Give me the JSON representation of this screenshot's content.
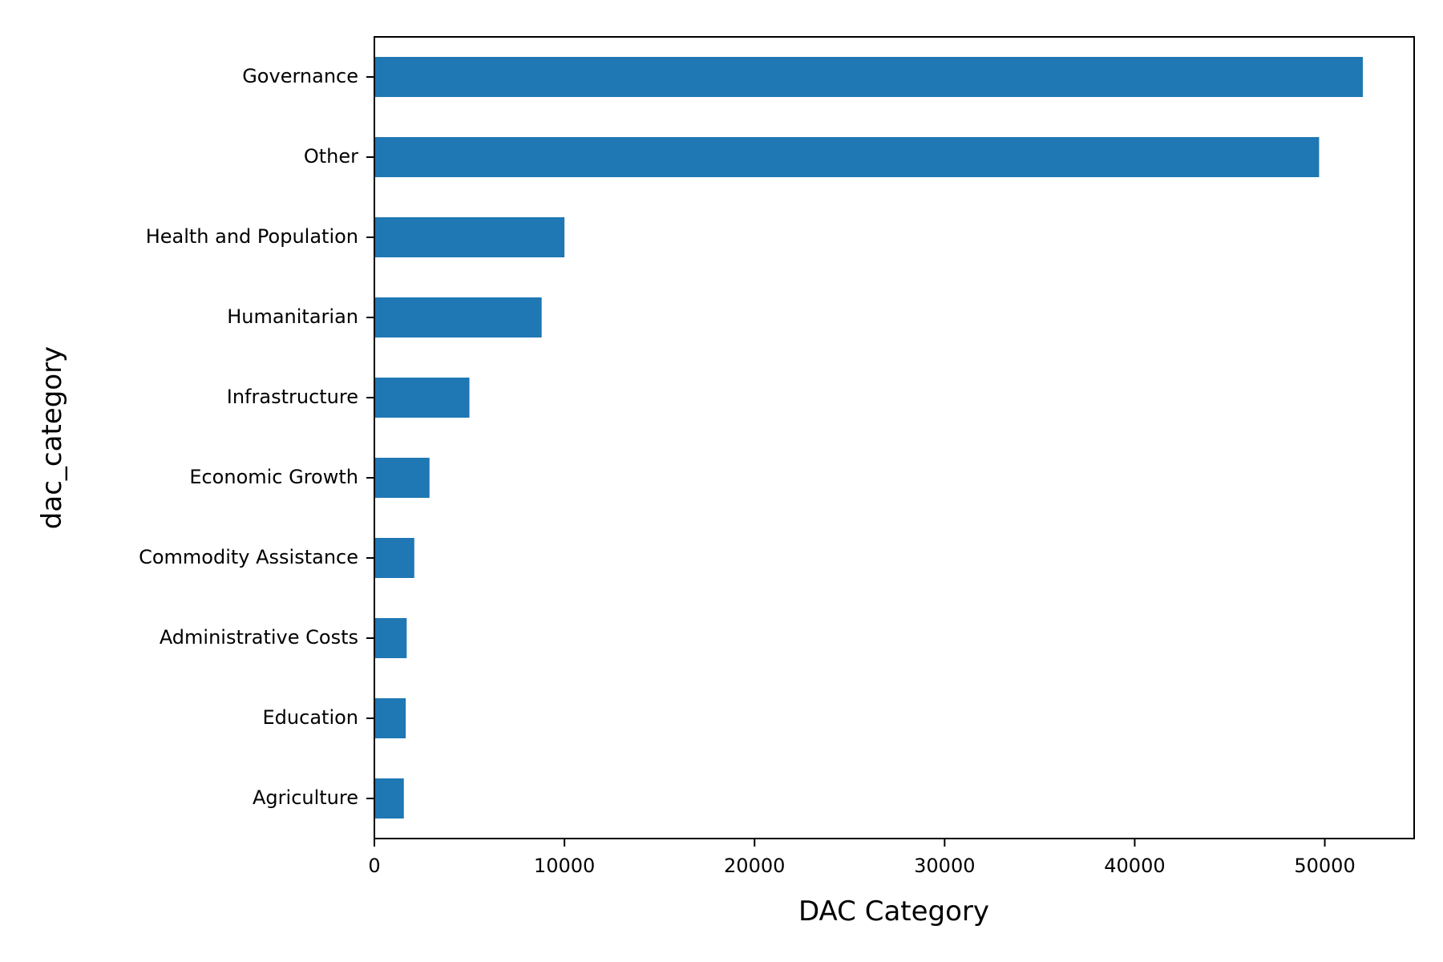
{
  "chart_data": {
    "type": "bar",
    "orientation": "horizontal",
    "categories": [
      "Governance",
      "Other",
      "Health and Population",
      "Humanitarian",
      "Infrastructure",
      "Economic Growth",
      "Commodity Assistance",
      "Administrative Costs",
      "Education",
      "Agriculture"
    ],
    "values": [
      52000,
      49700,
      10000,
      8800,
      5000,
      2900,
      2100,
      1700,
      1650,
      1550
    ],
    "title": "",
    "xlabel": "DAC Category",
    "ylabel": "dac_category",
    "xlim": [
      0,
      54700
    ],
    "xticks": [
      0,
      10000,
      20000,
      30000,
      40000,
      50000
    ],
    "grid": false,
    "bar_color": "#1f77b4"
  }
}
